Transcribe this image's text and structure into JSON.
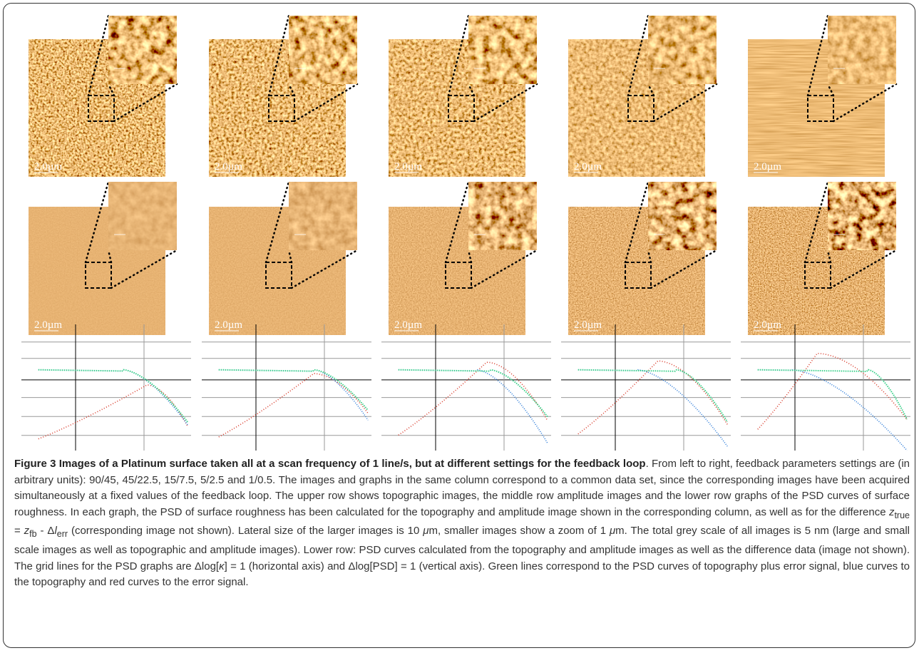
{
  "figure": {
    "scale_labels": [
      "2.0µm",
      "2.0µm",
      "2.0µm",
      "2.0µm",
      "2.0µm",
      "2.0µm",
      "2.0µm",
      "2.0µm",
      "2.0µm",
      "2.0µm"
    ],
    "caption": {
      "title": "Figure 3 Images of a Platinum surface taken all at a scan frequency of 1 line/s, but at different settings for the feedback loop",
      "segments": [
        ". From left to right, feedback parameters settings are (in arbitrary units): 90/45, 45/22.5, 15/7.5, 5/2.5 and 1/0.5. The images and graphs in the same column correspond to a common data set, since the corresponding images have been acquired simultaneously at a fixed values of the feedback loop. The upper row shows topographic images, the middle row amplitude images and the lower row graphs of the PSD curves of surface roughness. In each graph, the PSD of surface roughness has been calculated for the topography and amplitude image shown in the corresponding column, as well as for the difference ",
        "z",
        "true",
        " = ",
        "z",
        "fb",
        " - Δ",
        "l",
        "err",
        " (corresponding image not shown). Lateral size of the larger images is 10 ",
        "μ",
        "m, smaller images show a zoom of 1 ",
        "μ",
        "m. The total grey scale of all images is 5 nm (large and small scale images as well as topographic and amplitude images). Lower row: PSD curves calculated from the topography and amplitude images as well as the difference data (image not shown). The grid lines for the PSD graphs are Δlog[",
        "κ",
        "] = 1 (horizontal axis) and Δlog[PSD] = 1 (vertical axis). Green lines correspond to the PSD curves of topography plus error signal, blue curves to the topography and red curves to the error signal."
      ]
    }
  }
}
